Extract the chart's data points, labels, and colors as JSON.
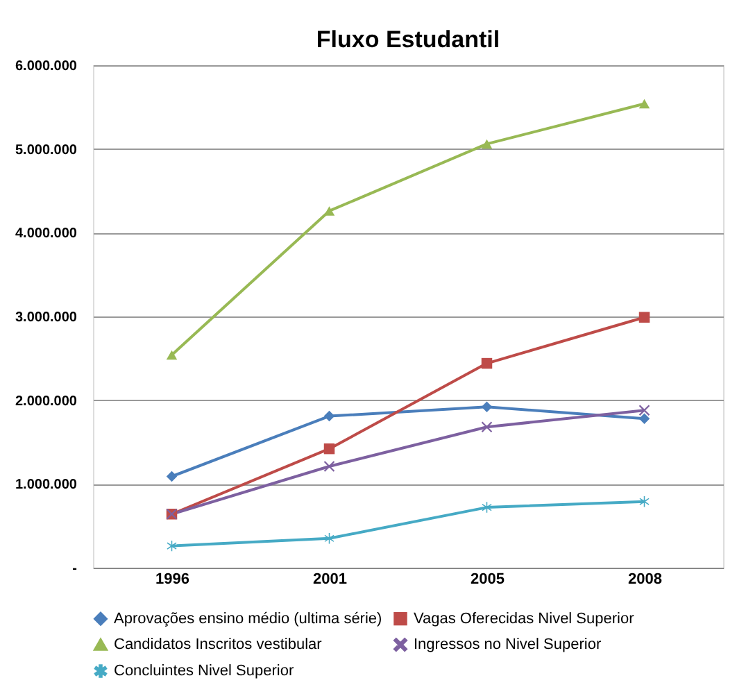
{
  "chart_data": {
    "type": "line",
    "title": "Fluxo Estudantil",
    "categories": [
      "1996",
      "2001",
      "2005",
      "2008"
    ],
    "series": [
      {
        "name": "Aprovações ensino médio (ultima série)",
        "color": "#4a7ebb",
        "marker": "diamond",
        "values": [
          1090000,
          1810000,
          1920000,
          1780000
        ]
      },
      {
        "name": "Vagas Oferecidas Nivel Superior",
        "color": "#be4b48",
        "marker": "square",
        "values": [
          640000,
          1420000,
          2440000,
          2990000
        ]
      },
      {
        "name": "Candidatos Inscritos vestibular",
        "color": "#98b954",
        "marker": "triangle",
        "values": [
          2540000,
          4260000,
          5060000,
          5540000
        ]
      },
      {
        "name": "Ingressos no Nivel Superior",
        "color": "#7d60a0",
        "marker": "cross",
        "values": [
          640000,
          1210000,
          1680000,
          1880000
        ]
      },
      {
        "name": "Concluintes Nivel Superior",
        "color": "#46aac5",
        "marker": "star",
        "values": [
          260000,
          350000,
          720000,
          790000
        ]
      }
    ],
    "ylim": [
      0,
      6000000
    ],
    "yticks": [
      {
        "value": 0,
        "label": "-"
      },
      {
        "value": 1000000,
        "label": "1.000.000"
      },
      {
        "value": 2000000,
        "label": "2.000.000"
      },
      {
        "value": 3000000,
        "label": "3.000.000"
      },
      {
        "value": 4000000,
        "label": "4.000.000"
      },
      {
        "value": 5000000,
        "label": "5.000.000"
      },
      {
        "value": 6000000,
        "label": "6.000.000"
      }
    ],
    "grid": "y",
    "legend": "bottom"
  }
}
